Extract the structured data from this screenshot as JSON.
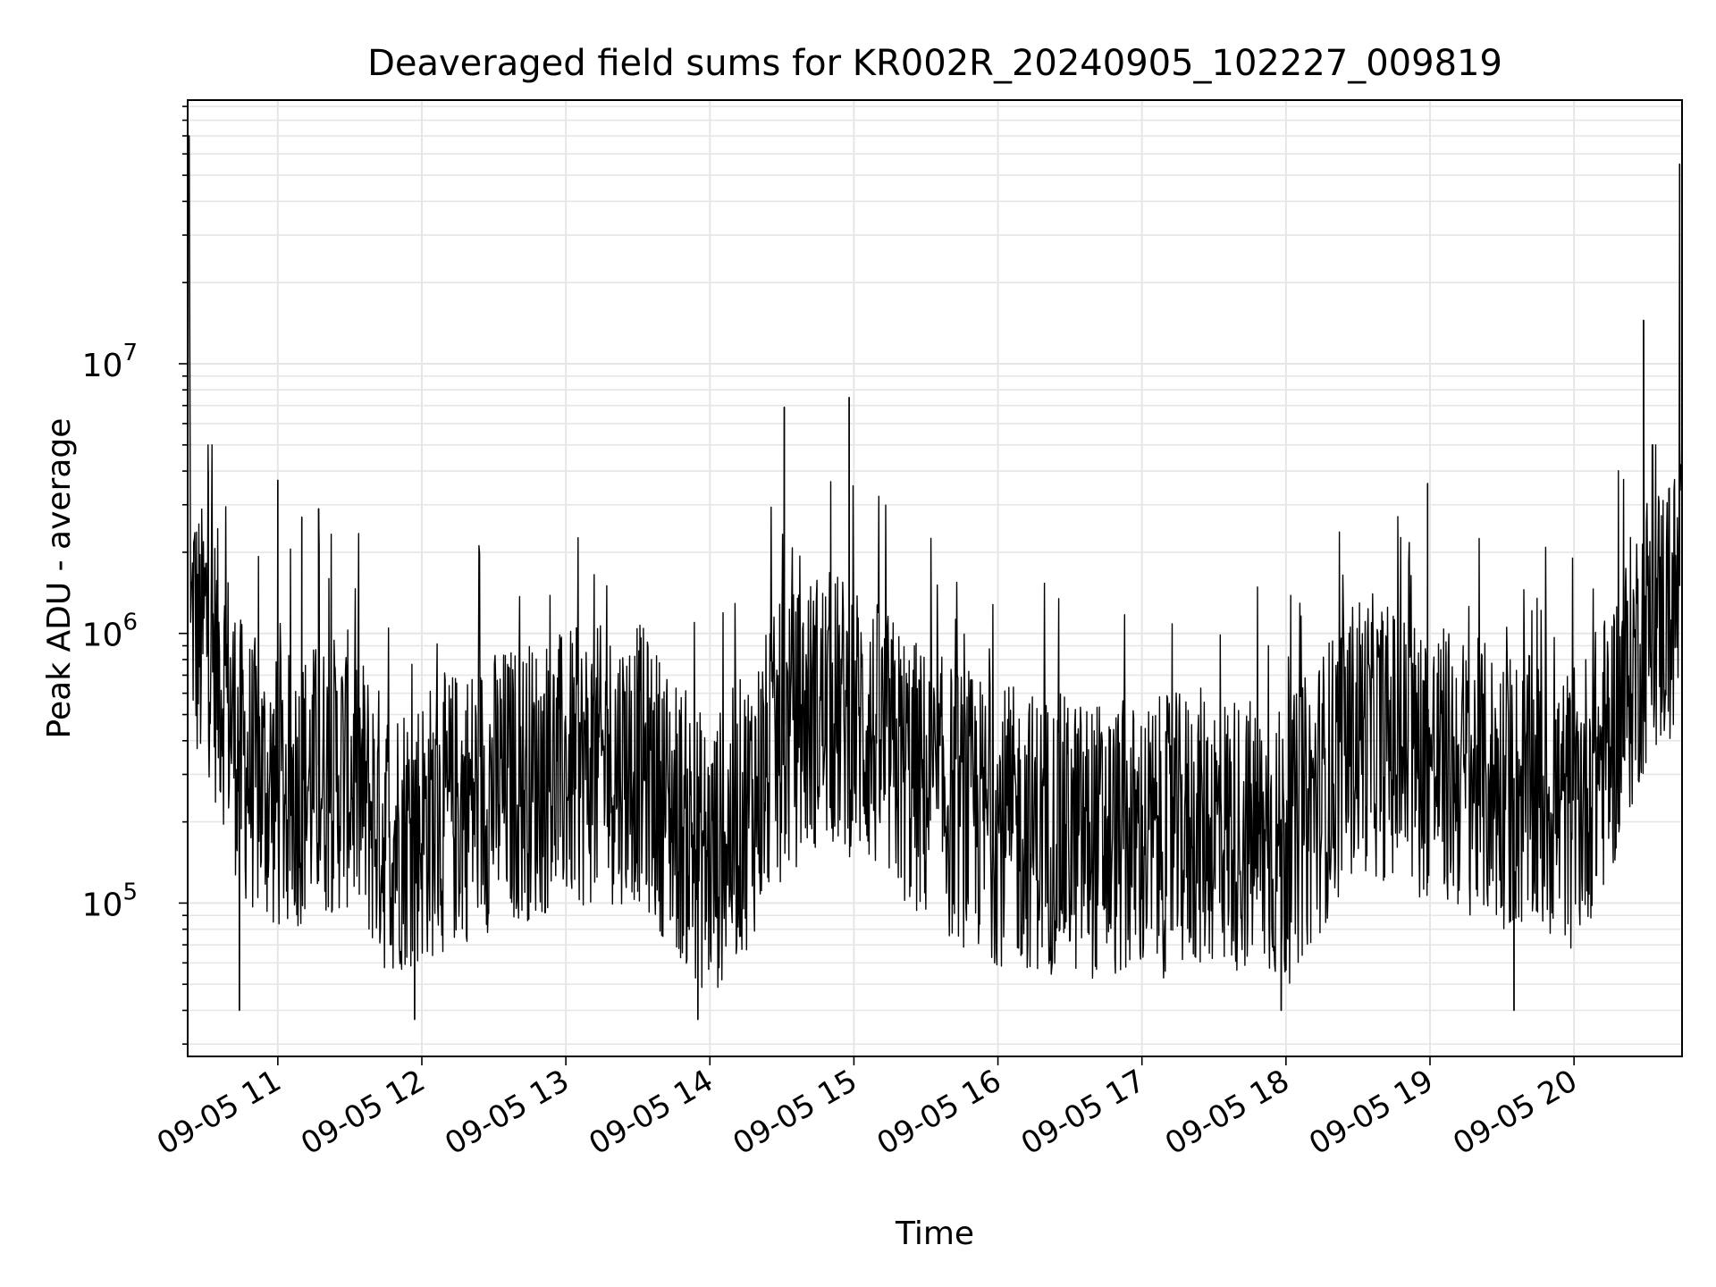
{
  "chart_data": {
    "type": "line",
    "title": "Deaveraged field sums for KR002R_20240905_102227_009819",
    "xlabel": "Time",
    "ylabel": "Peak ADU - average",
    "x_scale": "time",
    "y_scale": "log",
    "xlim": [
      "2024-09-05 10:22:27",
      "2024-09-05 20:45:00"
    ],
    "ylim": [
      27000,
      95000000
    ],
    "grid": true,
    "minor_grid": true,
    "line_color": "#000000",
    "x_tick_labels": [
      "09-05 11",
      "09-05 12",
      "09-05 13",
      "09-05 14",
      "09-05 15",
      "09-05 16",
      "09-05 17",
      "09-05 18",
      "09-05 19",
      "09-05 20"
    ],
    "y_tick_labels": [
      {
        "base": "10",
        "exp": "5"
      },
      {
        "base": "10",
        "exp": "6"
      },
      {
        "base": "10",
        "exp": "7"
      }
    ],
    "series": [
      {
        "x": [
          "2024-09-05 10:22:30",
          "2024-09-05 10:22:45",
          "2024-09-05 10:23:00",
          "2024-09-05 10:24:00",
          "2024-09-05 10:25:00",
          "2024-09-05 10:26:00",
          "2024-09-05 10:28:00",
          "2024-09-05 10:30:00",
          "2024-09-05 10:33:00",
          "2024-09-05 10:36:00",
          "2024-09-05 10:40:00",
          "2024-09-05 10:44:00",
          "2024-09-05 10:48:00",
          "2024-09-05 10:52:00",
          "2024-09-05 10:56:00",
          "2024-09-05 11:00:00",
          "2024-09-05 11:15:00",
          "2024-09-05 11:30:00",
          "2024-09-05 11:45:00",
          "2024-09-05 12:00:00",
          "2024-09-05 12:30:00",
          "2024-09-05 13:00:00",
          "2024-09-05 13:30:00",
          "2024-09-05 14:00:00",
          "2024-09-05 14:15:00",
          "2024-09-05 14:30:00",
          "2024-09-05 14:45:00",
          "2024-09-05 15:00:00",
          "2024-09-05 15:30:00",
          "2024-09-05 16:00:00",
          "2024-09-05 16:30:00",
          "2024-09-05 17:00:00",
          "2024-09-05 17:30:00",
          "2024-09-05 18:00:00",
          "2024-09-05 18:30:00",
          "2024-09-05 19:00:00",
          "2024-09-05 19:30:00",
          "2024-09-05 20:00:00",
          "2024-09-05 20:15:00",
          "2024-09-05 20:30:00",
          "2024-09-05 20:44:00"
        ],
        "y": [
          300000,
          65000000,
          70000000,
          1200000,
          1500000,
          1100000,
          1000000,
          1300000,
          900000,
          800000,
          600000,
          400000,
          350000,
          320000,
          300000,
          280000,
          320000,
          350000,
          200000,
          220000,
          300000,
          350000,
          380000,
          160000,
          250000,
          450000,
          600000,
          550000,
          300000,
          220000,
          200000,
          190000,
          220000,
          180000,
          500000,
          380000,
          300000,
          250000,
          450000,
          1200000,
          1500000
        ],
        "peaks": [
          {
            "x": "2024-09-05 10:31:00",
            "y": 4000000
          },
          {
            "x": "2024-09-05 11:00:00",
            "y": 3700000
          },
          {
            "x": "2024-09-05 11:10:00",
            "y": 2700000
          },
          {
            "x": "2024-09-05 11:17:00",
            "y": 2900000
          },
          {
            "x": "2024-09-05 14:31:00",
            "y": 6900000
          },
          {
            "x": "2024-09-05 14:58:00",
            "y": 7500000
          },
          {
            "x": "2024-09-05 18:59:00",
            "y": 3600000
          },
          {
            "x": "2024-09-05 20:29:00",
            "y": 14500000
          },
          {
            "x": "2024-09-05 20:44:00",
            "y": 55000000
          }
        ],
        "dips": [
          {
            "x": "2024-09-05 10:44:00",
            "y": 40000
          },
          {
            "x": "2024-09-05 11:57:00",
            "y": 37000
          },
          {
            "x": "2024-09-05 13:55:00",
            "y": 37000
          },
          {
            "x": "2024-09-05 17:58:00",
            "y": 40000
          },
          {
            "x": "2024-09-05 19:35:00",
            "y": 40000
          }
        ]
      }
    ]
  }
}
